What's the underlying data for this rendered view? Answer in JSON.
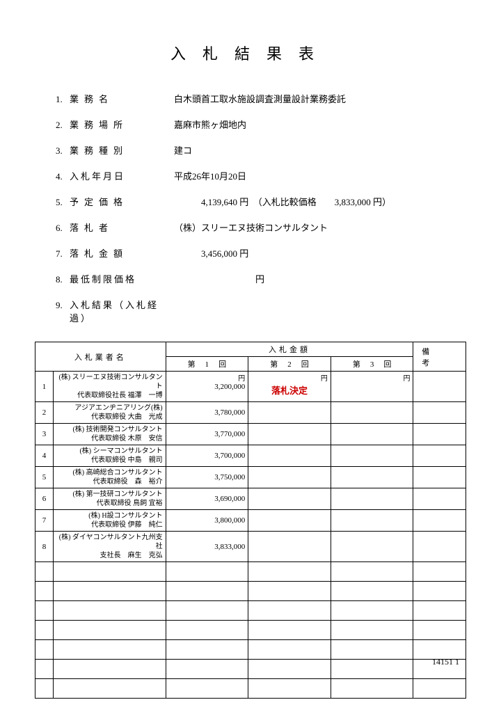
{
  "title": "入札結果表",
  "fields": [
    {
      "num": "1.",
      "label": "業務名",
      "labelClass": "",
      "value": "白木頭首工取水施設調査測量設計業務委託"
    },
    {
      "num": "2.",
      "label": "業務場所",
      "labelClass": "",
      "value": "嘉麻市熊ヶ畑地内"
    },
    {
      "num": "3.",
      "label": "業務種別",
      "labelClass": "",
      "value": "建コ"
    },
    {
      "num": "4.",
      "label": "入札年月日",
      "labelClass": "tight",
      "value": "平成26年10月20日"
    },
    {
      "num": "5.",
      "label": "予定価格",
      "labelClass": "",
      "value": "　　　4,139,640 円　（入札比較価格　　3,833,000 円）"
    },
    {
      "num": "6.",
      "label": "落札者",
      "labelClass": "",
      "value": "（株）スリーエヌ技術コンサルタント"
    },
    {
      "num": "7.",
      "label": "落札金額",
      "labelClass": "",
      "value": "　　　3,456,000 円"
    },
    {
      "num": "8.",
      "label": "最低制限価格",
      "labelClass": "tight",
      "value": "　　　　　　　　　円"
    },
    {
      "num": "9.",
      "label": "入札結果（入札経過）",
      "labelClass": "tight",
      "value": ""
    }
  ],
  "table": {
    "headers": {
      "company": "入札業者名",
      "amount": "入札金額",
      "round1": "第1回",
      "round2": "第2回",
      "round3": "第3回",
      "remark": "備考"
    },
    "unit": "円",
    "decision": "落札決定",
    "rows": [
      {
        "n": "1",
        "company": "(株) スリーエヌ技術コンサルタント\n代表取締役社長 福澤　一博",
        "r1": "3,200,000",
        "r2": "decision",
        "r3": ""
      },
      {
        "n": "2",
        "company": "アジアエンヂニアリング(株)\n代表取締役 大曲　光成",
        "r1": "3,780,000",
        "r2": "",
        "r3": ""
      },
      {
        "n": "3",
        "company": "(株) 技術開発コンサルタント\n代表取締役 木原　安信",
        "r1": "3,770,000",
        "r2": "",
        "r3": ""
      },
      {
        "n": "4",
        "company": "(株) シーマコンサルタント\n代表取締役 中島　親司",
        "r1": "3,700,000",
        "r2": "",
        "r3": ""
      },
      {
        "n": "5",
        "company": "(株) 高崎総合コンサルタント\n代表取締役　森　裕介",
        "r1": "3,750,000",
        "r2": "",
        "r3": ""
      },
      {
        "n": "6",
        "company": "(株) 第一技研コンサルタント\n代表取締役 鳥飼 宜裕",
        "r1": "3,690,000",
        "r2": "",
        "r3": ""
      },
      {
        "n": "7",
        "company": "(株) H設コンサルタント\n代表取締役 伊藤　純仁",
        "r1": "3,800,000",
        "r2": "",
        "r3": ""
      },
      {
        "n": "8",
        "company": "(株) ダイヤコンサルタント九州支社\n支社長　麻生　克弘",
        "r1": "3,833,000",
        "r2": "",
        "r3": ""
      }
    ],
    "emptyRows": 7
  },
  "footer": "14151  1"
}
